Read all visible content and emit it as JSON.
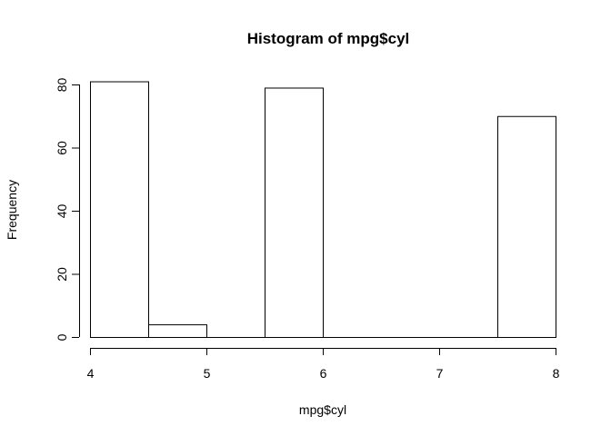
{
  "chart_data": {
    "type": "bar",
    "title": "Histogram of mpg$cyl",
    "xlabel": "mpg$cyl",
    "ylabel": "Frequency",
    "bins": [
      {
        "start": 4.0,
        "end": 4.5,
        "count": 81
      },
      {
        "start": 4.5,
        "end": 5.0,
        "count": 4
      },
      {
        "start": 5.0,
        "end": 5.5,
        "count": 0
      },
      {
        "start": 5.5,
        "end": 6.0,
        "count": 79
      },
      {
        "start": 6.0,
        "end": 6.5,
        "count": 0
      },
      {
        "start": 6.5,
        "end": 7.0,
        "count": 0
      },
      {
        "start": 7.0,
        "end": 7.5,
        "count": 0
      },
      {
        "start": 7.5,
        "end": 8.0,
        "count": 70
      }
    ],
    "xlim": [
      4,
      8
    ],
    "ylim": [
      0,
      85
    ],
    "x_ticks": [
      4,
      5,
      6,
      7,
      8
    ],
    "y_ticks": [
      0,
      20,
      40,
      60,
      80
    ],
    "grid": false,
    "colors": {
      "bar_fill": "#ffffff",
      "bar_stroke": "#000000"
    }
  }
}
